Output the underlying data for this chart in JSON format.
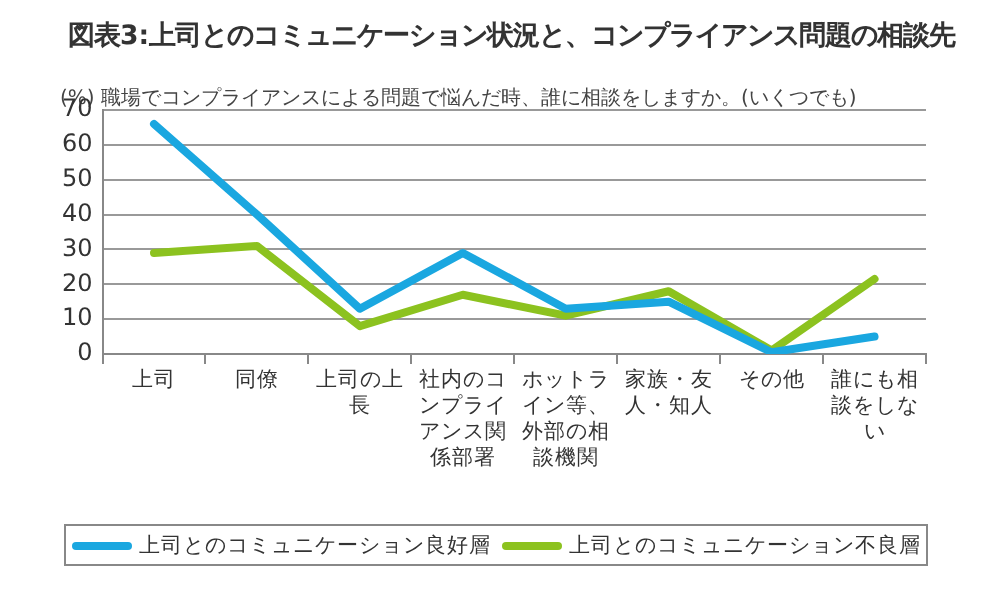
{
  "chart_data": {
    "type": "line",
    "title": "図表3:上司とのコミュニケーション状況と、コンプライアンス問題の相談先",
    "subtitle": "職場でコンプライアンスによる問題で悩んだ時、誰に相談をしますか。(いくつでも)",
    "ylabel": "(%)",
    "categories": [
      "上司",
      "同僚",
      "上司の上長",
      "社内のコンプライアンス関係部署",
      "ホットライン等、外部の相談機関",
      "家族・友人・知人",
      "その他",
      "誰にも相談をしない"
    ],
    "series": [
      {
        "name": "上司とのコミュニケーション良好層",
        "color": "#1aa7e0",
        "values": [
          66,
          40,
          13,
          29,
          13,
          15,
          0.5,
          5
        ]
      },
      {
        "name": "上司とのコミュニケーション不良層",
        "color": "#8cc21f",
        "values": [
          29,
          31,
          8,
          17,
          11,
          18,
          1,
          21.5
        ]
      }
    ],
    "ylim": [
      0,
      70
    ],
    "yticks": [
      0,
      10,
      20,
      30,
      40,
      50,
      60,
      70
    ],
    "grid": "y",
    "legend": "bottom",
    "marker": "none",
    "line_style": "solid"
  }
}
